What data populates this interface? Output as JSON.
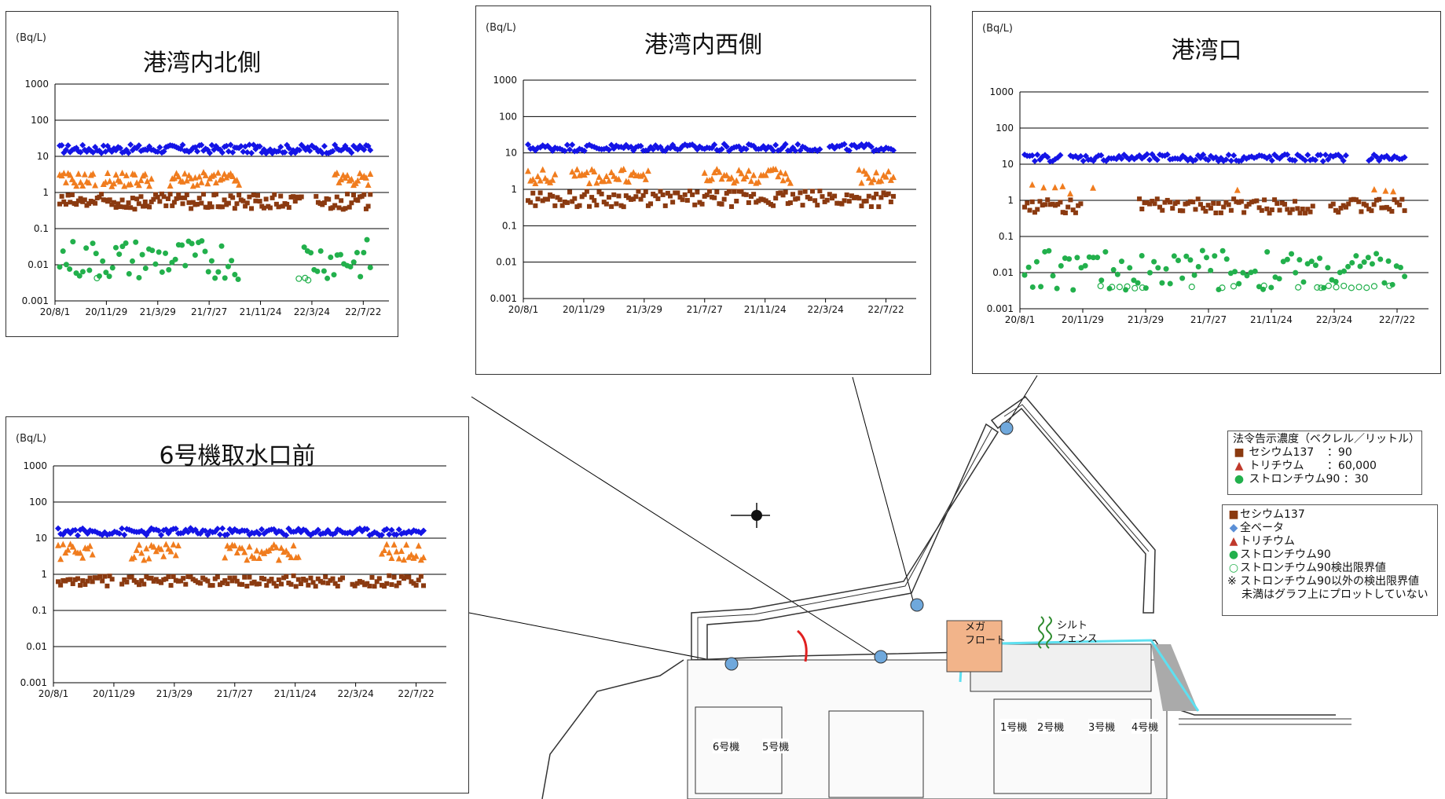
{
  "unit_label": "(Bq/L)",
  "colors": {
    "cs137": "#8B3A10",
    "all_beta": "#1414E6",
    "tritium": "#F07C1E",
    "sr90": "#22B04C",
    "sr90_limit": "#22B04C",
    "point_marker": "#6FA8DC",
    "silt_fence": "#2E8B2E",
    "mega_float": "#F2B48A",
    "boundary_cyan": "#5EE0F0",
    "red_barrier": "#E02020"
  },
  "x_ticks": [
    "20/8/1",
    "20/11/29",
    "21/3/29",
    "21/7/27",
    "21/11/24",
    "22/3/24",
    "22/7/22"
  ],
  "y_ticks": [
    "1000",
    "100",
    "10",
    "1",
    "0.1",
    "0.01",
    "0.001"
  ],
  "chart_data": [
    {
      "id": "north",
      "type": "scatter",
      "title": "港湾内北側",
      "ylabel": "(Bq/L)",
      "y_scale": "log",
      "ylim": [
        0.001,
        1000
      ],
      "x_categories": [
        "20/8/1",
        "20/11/29",
        "21/3/29",
        "21/7/27",
        "21/11/24",
        "22/3/24",
        "22/7/22"
      ],
      "series": [
        {
          "name": "全ベータ",
          "marker": "diamond",
          "color": "#1414E6",
          "level": 16,
          "spread": 0.12,
          "gaps": []
        },
        {
          "name": "セシウム137",
          "marker": "square",
          "color": "#8B3A10",
          "level": 0.55,
          "spread": 0.22,
          "gaps": [
            [
              0.78,
              0.82
            ]
          ]
        },
        {
          "name": "トリチウム",
          "marker": "triangle",
          "color": "#F07C1E",
          "level": 2.2,
          "spread": 0.2,
          "gaps": [
            [
              0.12,
              0.14
            ],
            [
              0.3,
              0.35
            ],
            [
              0.58,
              0.88
            ]
          ]
        },
        {
          "name": "ストロンチウム90",
          "marker": "circle",
          "color": "#22B04C",
          "level": 0.014,
          "spread": 0.35,
          "gaps": [
            [
              0.58,
              0.78
            ]
          ]
        },
        {
          "name": "ストロンチウム90検出限界値",
          "marker": "circle-open",
          "color": "#22B04C",
          "level": 0.004,
          "spread": 0.05,
          "gaps": [],
          "sparse": [
            0.12,
            0.77,
            0.79,
            0.8
          ]
        }
      ]
    },
    {
      "id": "west",
      "type": "scatter",
      "title": "港湾内西側",
      "ylabel": "(Bq/L)",
      "y_scale": "log",
      "ylim": [
        0.001,
        1000
      ],
      "x_categories": [
        "20/8/1",
        "20/11/29",
        "21/3/29",
        "21/7/27",
        "21/11/24",
        "22/3/24",
        "22/7/22"
      ],
      "series": [
        {
          "name": "全ベータ",
          "marker": "diamond",
          "color": "#1414E6",
          "level": 14,
          "spread": 0.1,
          "gaps": [
            [
              0.8,
              0.82
            ]
          ]
        },
        {
          "name": "セシウム137",
          "marker": "square",
          "color": "#8B3A10",
          "level": 0.55,
          "spread": 0.22,
          "gaps": []
        },
        {
          "name": "トリチウム",
          "marker": "triangle",
          "color": "#F07C1E",
          "level": 2.2,
          "spread": 0.2,
          "gaps": [
            [
              0.08,
              0.12
            ],
            [
              0.33,
              0.48
            ],
            [
              0.72,
              0.9
            ]
          ]
        }
      ]
    },
    {
      "id": "mouth",
      "type": "scatter",
      "title": "港湾口",
      "ylabel": "(Bq/L)",
      "y_scale": "log",
      "ylim": [
        0.001,
        1000
      ],
      "x_categories": [
        "20/8/1",
        "20/11/29",
        "21/3/29",
        "21/7/27",
        "21/11/24",
        "22/3/24",
        "22/7/22"
      ],
      "series": [
        {
          "name": "全ベータ",
          "marker": "diamond",
          "color": "#1414E6",
          "level": 15,
          "spread": 0.1,
          "gaps": [
            [
              0.1,
              0.12
            ],
            [
              0.85,
              0.9
            ]
          ]
        },
        {
          "name": "セシウム137",
          "marker": "square",
          "color": "#8B3A10",
          "level": 0.7,
          "spread": 0.2,
          "gaps": [
            [
              0.15,
              0.3
            ],
            [
              0.76,
              0.8
            ]
          ]
        },
        {
          "name": "トリチウム",
          "marker": "triangle",
          "color": "#F07C1E",
          "level": 2.0,
          "spread": 0.15,
          "gaps": [
            [
              0.2,
              0.55
            ],
            [
              0.6,
              0.9
            ]
          ],
          "sparse": [
            0.02,
            0.05,
            0.08,
            0.1,
            0.12,
            0.18,
            0.56,
            0.92,
            0.95,
            0.97
          ]
        },
        {
          "name": "ストロンチウム90",
          "marker": "circle",
          "color": "#22B04C",
          "level": 0.012,
          "spread": 0.35,
          "gaps": []
        },
        {
          "name": "ストロンチウム90検出限界値",
          "marker": "circle-open",
          "color": "#22B04C",
          "level": 0.004,
          "spread": 0.04,
          "gaps": [],
          "sparse": [
            0.2,
            0.23,
            0.25,
            0.27,
            0.29,
            0.31,
            0.44,
            0.52,
            0.55,
            0.63,
            0.72,
            0.77,
            0.78,
            0.8,
            0.82,
            0.84,
            0.86,
            0.88,
            0.9,
            0.92,
            0.96
          ]
        }
      ]
    },
    {
      "id": "unit6",
      "type": "scatter",
      "title": "6号機取水口前",
      "ylabel": "(Bq/L)",
      "y_scale": "log",
      "ylim": [
        0.001,
        1000
      ],
      "x_categories": [
        "20/8/1",
        "20/11/29",
        "21/3/29",
        "21/7/27",
        "21/11/24",
        "22/3/24",
        "22/7/22"
      ],
      "series": [
        {
          "name": "全ベータ",
          "marker": "diamond",
          "color": "#1414E6",
          "level": 15,
          "spread": 0.1,
          "gaps": []
        },
        {
          "name": "セシウム137",
          "marker": "square",
          "color": "#8B3A10",
          "level": 0.65,
          "spread": 0.15,
          "gaps": [
            [
              0.15,
              0.17
            ],
            [
              0.78,
              0.8
            ]
          ]
        },
        {
          "name": "トリチウム",
          "marker": "triangle",
          "color": "#F07C1E",
          "level": 4.0,
          "spread": 0.22,
          "gaps": [
            [
              0.1,
              0.2
            ],
            [
              0.33,
              0.45
            ],
            [
              0.66,
              0.88
            ]
          ]
        }
      ]
    }
  ],
  "legend_limits": {
    "title": "法令告示濃度（ベクレル／リットル）",
    "items": [
      {
        "symbol": "■",
        "label": "セシウム137",
        "value": "：90"
      },
      {
        "symbol": "▲",
        "label": "トリチウム",
        "value": "：60,000"
      },
      {
        "symbol": "●",
        "label": "ストロンチウム90",
        "value": "：30"
      }
    ]
  },
  "legend_series": {
    "items": [
      {
        "symbol": "■",
        "label": "セシウム137"
      },
      {
        "symbol": "◆",
        "label": "全ベータ"
      },
      {
        "symbol": "▲",
        "label": "トリチウム"
      },
      {
        "symbol": "●",
        "label": "ストロンチウム90"
      },
      {
        "symbol": "○",
        "label": "ストロンチウム90検出限界値"
      }
    ],
    "note_line1": "※ ストロンチウム90以外の検出限界値",
    "note_line2": "未満はグラフ上にプロットしていない"
  },
  "map": {
    "mega_float_label_1": "メガ",
    "mega_float_label_2": "フロート",
    "silt_fence_label_1": "シルト",
    "silt_fence_label_2": "フェンス",
    "units": [
      "1号機",
      "2号機",
      "3号機",
      "4号機",
      "6号機",
      "5号機"
    ]
  }
}
